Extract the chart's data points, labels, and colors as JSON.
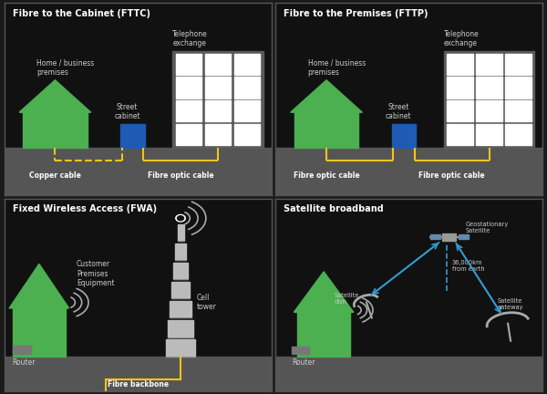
{
  "bg_color": "#1a1a1a",
  "panel_bg": "#111111",
  "border_color": "#555555",
  "green": "#4caf50",
  "blue_cabinet": "#1e5bb5",
  "yellow": "#f5c518",
  "gray_building": "#5a5a5a",
  "white": "#ffffff",
  "light_gray": "#aaaaaa",
  "mid_gray": "#888888",
  "ground_color": "#555555",
  "title_color": "#ffffff",
  "label_color": "#cccccc",
  "bold_label_color": "#ffffff",
  "arrow_blue": "#3399cc",
  "tower_color": "#bbbbbb",
  "panel_titles": [
    "Fibre to the Cabinet (FTTC)",
    "Fibre to the Premises (FTTP)",
    "Fixed Wireless Access (FWA)",
    "Satellite broadband"
  ],
  "title_fontsize": 7,
  "label_fontsize": 5.5,
  "small_fontsize": 4.8
}
